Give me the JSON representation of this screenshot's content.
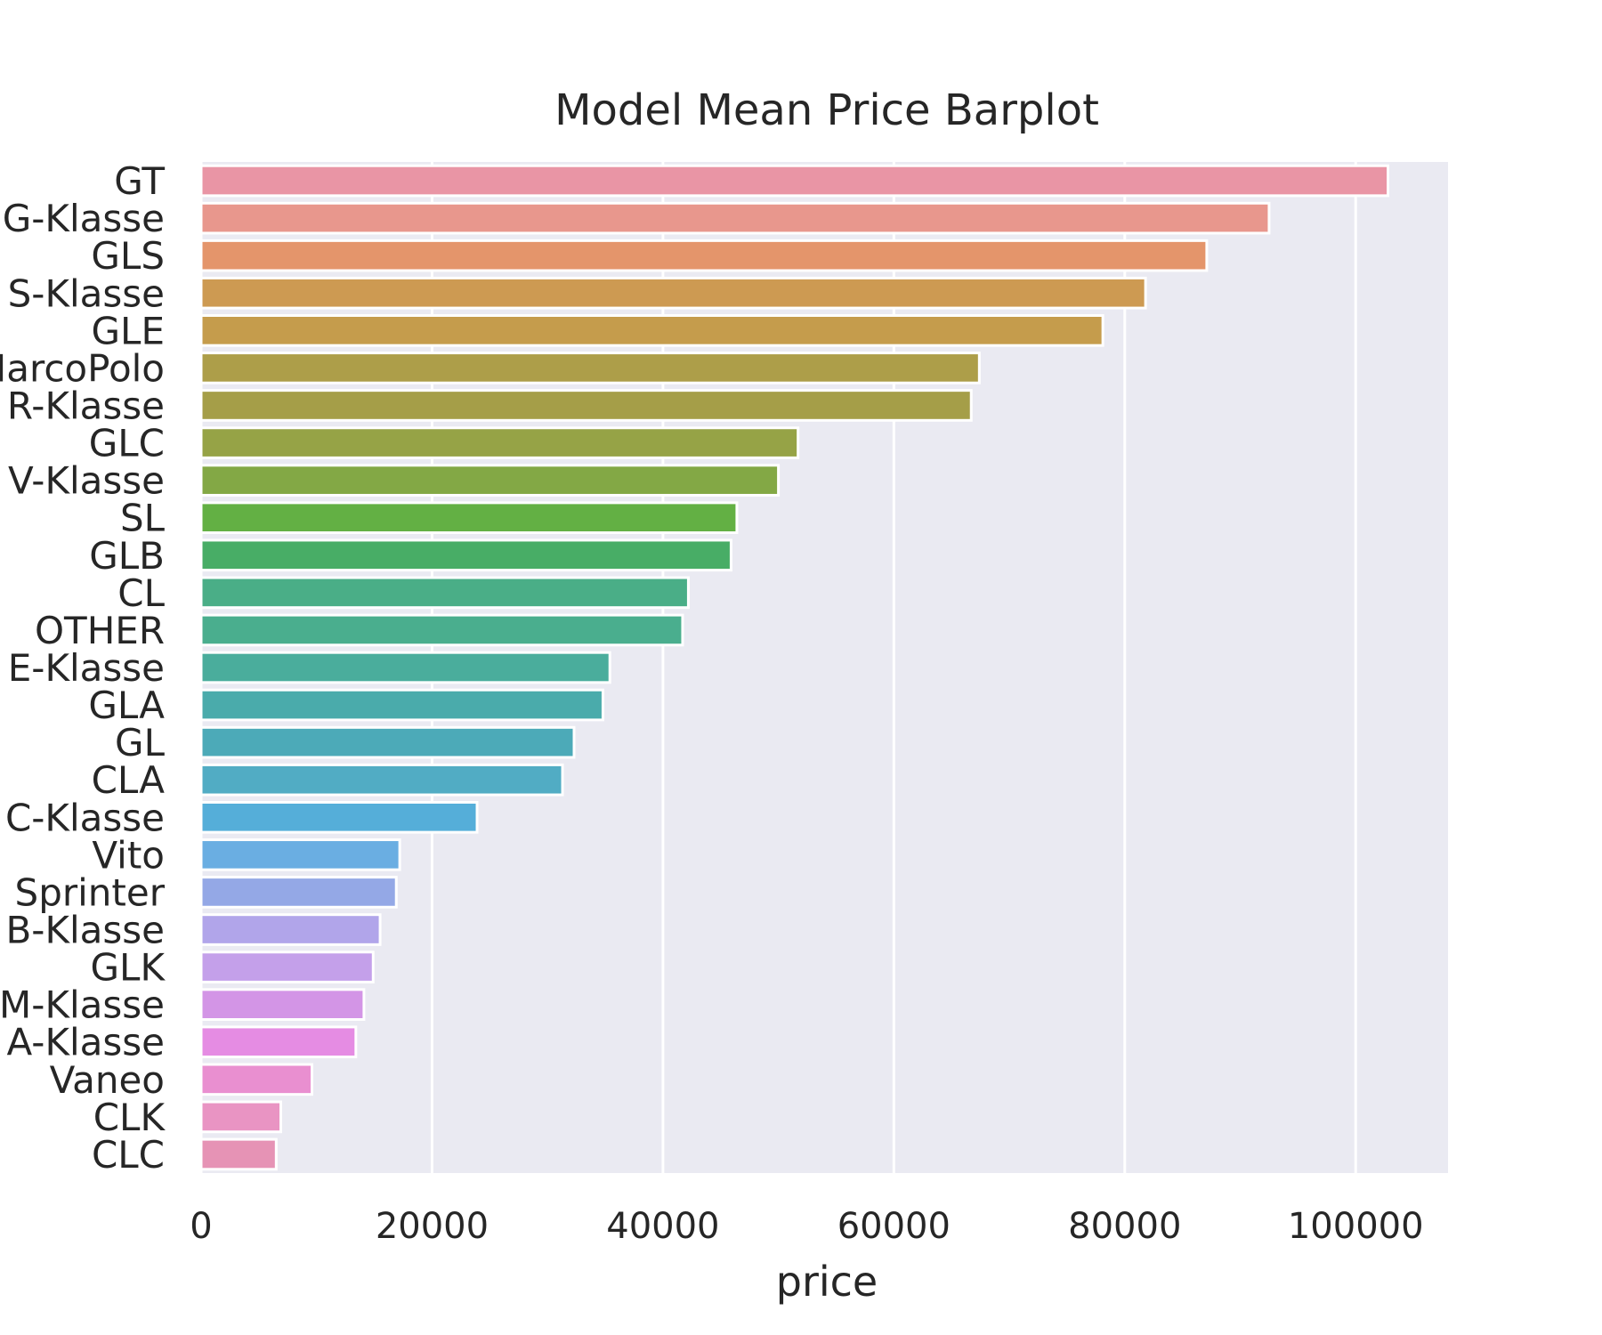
{
  "chart_data": {
    "type": "bar",
    "orientation": "horizontal",
    "title": "Model Mean Price Barplot",
    "xlabel": "price",
    "ylabel": "",
    "xlim": [
      0,
      108000
    ],
    "xticks": [
      0,
      20000,
      40000,
      60000,
      80000,
      100000
    ],
    "xtick_labels": [
      "0",
      "20000",
      "40000",
      "60000",
      "80000",
      "100000"
    ],
    "grid": true,
    "categories": [
      "GT",
      "G-Klasse",
      "GLS",
      "S-Klasse",
      "GLE",
      "MarcoPolo",
      "R-Klasse",
      "GLC",
      "V-Klasse",
      "SL",
      "GLB",
      "CL",
      "OTHER",
      "E-Klasse",
      "GLA",
      "GL",
      "CLA",
      "C-Klasse",
      "Vito",
      "Sprinter",
      "B-Klasse",
      "GLK",
      "M-Klasse",
      "A-Klasse",
      "Vaneo",
      "CLK",
      "CLC"
    ],
    "values": [
      102800,
      92500,
      87100,
      81800,
      78100,
      67400,
      66700,
      51700,
      50000,
      46400,
      45900,
      42200,
      41700,
      35400,
      34800,
      32300,
      31300,
      23900,
      17200,
      16900,
      15500,
      14900,
      14100,
      13400,
      9600,
      6900,
      6500
    ],
    "colors": [
      "#e995a5",
      "#e8978d",
      "#e4956b",
      "#cd9a52",
      "#c59c4c",
      "#ad9e49",
      "#a59e48",
      "#96a346",
      "#83a845",
      "#63b044",
      "#48ad66",
      "#4aae87",
      "#4aae8e",
      "#4aad9c",
      "#4aabab",
      "#4caab8",
      "#51acc4",
      "#55aed9",
      "#6aaee2",
      "#94a8e6",
      "#b1a5ea",
      "#c4a0ea",
      "#d395e6",
      "#e58ce3",
      "#e98fd0",
      "#e994c3",
      "#e693b5"
    ],
    "plot_background": "#eaeaf2",
    "grid_color": "#ffffff",
    "text_color": "#262626"
  }
}
